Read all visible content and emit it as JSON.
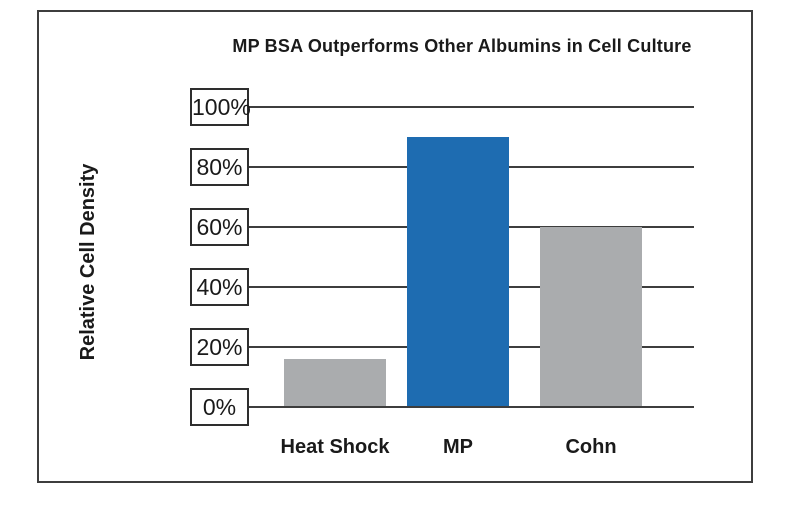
{
  "chart_data": {
    "type": "bar",
    "title": "MP BSA Outperforms Other Albumins in Cell Culture",
    "ylabel": "Relative Cell Density",
    "xlabel": "",
    "categories": [
      "Heat Shock",
      "MP",
      "Cohn"
    ],
    "values": [
      16,
      90,
      60
    ],
    "value_unit": "%",
    "ylim": [
      0,
      100
    ],
    "ytick_step": 20,
    "ytick_labels": [
      "0%",
      "20%",
      "40%",
      "60%",
      "80%",
      "100%"
    ],
    "grid": "horizontal",
    "legend": "none",
    "bar_colors": [
      "#aaacae",
      "#1e6cb1",
      "#aaacae"
    ],
    "colors": {
      "highlight_bar": "#1e6cb1",
      "default_bar": "#aaacae",
      "axis_line": "#3d3d3d",
      "text": "#1a1a1a",
      "background": "#ffffff"
    }
  }
}
